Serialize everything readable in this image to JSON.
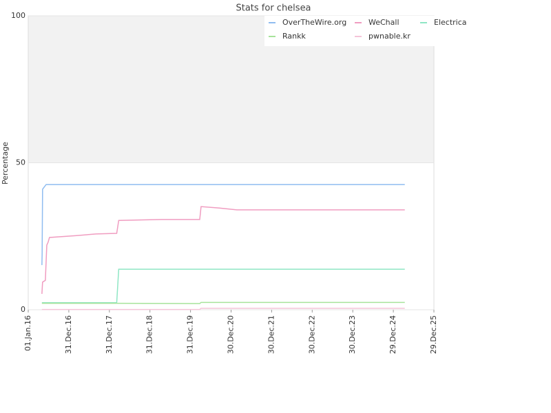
{
  "chart_data": {
    "type": "line",
    "title": "Stats for chelsea",
    "y_label": "Percentage",
    "xlim": [
      "2016-01-01",
      "2025-12-29"
    ],
    "xticks": [
      {
        "value": "2016-01-01",
        "label": "01.Jan.16"
      },
      {
        "value": "2016-12-31",
        "label": "31.Dec.16"
      },
      {
        "value": "2017-12-31",
        "label": "31.Dec.17"
      },
      {
        "value": "2018-12-31",
        "label": "31.Dec.18"
      },
      {
        "value": "2019-12-31",
        "label": "31.Dec.19"
      },
      {
        "value": "2020-12-30",
        "label": "30.Dec.20"
      },
      {
        "value": "2021-12-30",
        "label": "30.Dec.21"
      },
      {
        "value": "2022-12-30",
        "label": "30.Dec.22"
      },
      {
        "value": "2023-12-30",
        "label": "30.Dec.23"
      },
      {
        "value": "2024-12-29",
        "label": "29.Dec.24"
      },
      {
        "value": "2025-12-29",
        "label": "29.Dec.25"
      }
    ],
    "ylim": [
      0,
      100
    ],
    "yticks": [
      0,
      50,
      100
    ],
    "band": {
      "from": 50,
      "to": 100,
      "color": "#f2f2f2"
    },
    "legend": "top-right",
    "series": [
      {
        "name": "OverTheWire.org",
        "color": "#8fbcf0",
        "x": [
          "2016-05-03",
          "2016-05-05",
          "2016-05-09",
          "2016-06-10",
          "2025-04-11"
        ],
        "values": [
          15.2,
          19,
          41,
          42.6,
          42.6
        ]
      },
      {
        "name": "WeChall",
        "color": "#f09cc0",
        "x": [
          "2016-05-03",
          "2016-05-09",
          "2016-06-03",
          "2016-06-16",
          "2016-06-28",
          "2016-07-10",
          "2017-03-02",
          "2017-09-03",
          "2018-03-07",
          "2018-03-25",
          "2019-04-12",
          "2020-03-23",
          "2020-04-04",
          "2020-09-17",
          "2021-02-19",
          "2025-04-11"
        ],
        "values": [
          5.4,
          9.4,
          10,
          22,
          23,
          24.6,
          25.2,
          25.8,
          26,
          30.4,
          30.7,
          30.7,
          35.1,
          34.6,
          34,
          34
        ]
      },
      {
        "name": "Electrica",
        "color": "#8ee6c4",
        "x": [
          "2016-05-03",
          "2018-03-07",
          "2018-03-25",
          "2025-04-11"
        ],
        "values": [
          2.4,
          2.4,
          13.8,
          13.8
        ]
      },
      {
        "name": "Rankk",
        "color": "#a6e39a",
        "x": [
          "2016-05-03",
          "2018-03-07",
          "2020-03-23",
          "2020-04-04",
          "2025-04-11"
        ],
        "values": [
          2.2,
          2.2,
          2.1,
          2.5,
          2.5
        ]
      },
      {
        "name": "pwnable.kr",
        "color": "#f5c4d8",
        "x": [
          "2016-05-03",
          "2020-03-23",
          "2020-04-04",
          "2025-04-11"
        ],
        "values": [
          0.1,
          0.1,
          0.5,
          0.5
        ]
      }
    ]
  }
}
